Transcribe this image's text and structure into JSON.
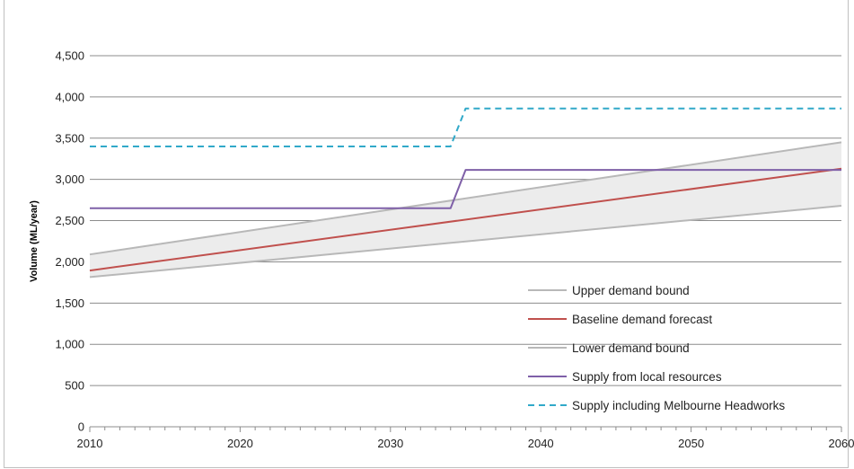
{
  "chart_data": {
    "type": "line",
    "ylabel": "Volume (ML/year)",
    "xlim": [
      2010,
      2060
    ],
    "ylim": [
      0,
      4500
    ],
    "x_ticks": [
      2010,
      2020,
      2030,
      2040,
      2050,
      2060
    ],
    "x_tick_labels": [
      "2010",
      "2020",
      "2030",
      "2040",
      "2050",
      "2060"
    ],
    "y_ticks": [
      0,
      500,
      1000,
      1500,
      2000,
      2500,
      3000,
      3500,
      4000,
      4500
    ],
    "y_tick_labels": [
      "0",
      "500",
      "1,000",
      "1,500",
      "2,000",
      "2,500",
      "3,000",
      "3,500",
      "4,000",
      "4,500"
    ],
    "grid": "horizontal",
    "legend_position": "bottom-right",
    "band": {
      "between": [
        "Upper demand bound",
        "Lower demand bound"
      ],
      "color": "#ececec"
    },
    "series": [
      {
        "name": "Upper demand bound",
        "color": "#b8b8b8",
        "style": "solid",
        "points": [
          [
            2010,
            2090
          ],
          [
            2060,
            3450
          ]
        ]
      },
      {
        "name": "Baseline demand forecast",
        "color": "#c0504d",
        "style": "solid",
        "points": [
          [
            2010,
            1895
          ],
          [
            2060,
            3130
          ]
        ]
      },
      {
        "name": "Lower demand bound",
        "color": "#b8b8b8",
        "style": "solid",
        "points": [
          [
            2010,
            1815
          ],
          [
            2060,
            2680
          ]
        ]
      },
      {
        "name": "Supply from local resources",
        "color": "#7f60a8",
        "style": "solid",
        "points": [
          [
            2010,
            2650
          ],
          [
            2034,
            2650
          ],
          [
            2035,
            3115
          ],
          [
            2060,
            3115
          ]
        ]
      },
      {
        "name": "Supply including Melbourne Headworks",
        "color": "#31a9c9",
        "style": "dashed",
        "points": [
          [
            2010,
            3400
          ],
          [
            2034,
            3400
          ],
          [
            2035,
            3860
          ],
          [
            2060,
            3860
          ]
        ]
      }
    ]
  }
}
